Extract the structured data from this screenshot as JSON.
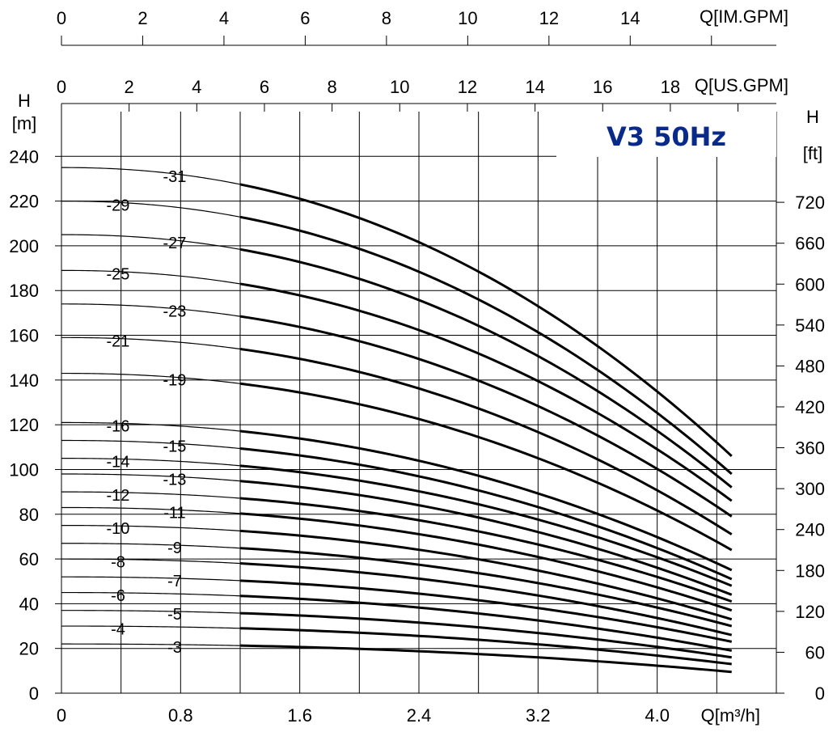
{
  "chart_data": {
    "type": "line",
    "title": "V3 50Hz",
    "colors": {
      "title": "#0a2a8a",
      "curves": "#000000",
      "grid": "#000000"
    },
    "grid": true,
    "legend": "none",
    "xlabel": "Q[m³/h]",
    "ylabel_left": [
      "H",
      "[m]"
    ],
    "ylabel_right": [
      "H",
      "[ft]"
    ],
    "x2label": "Q[US.GPM]",
    "x3label": "Q[IM.GPM]",
    "xlim": [
      0,
      4.8
    ],
    "ylim": [
      0,
      260
    ],
    "x_ticks": [
      "0",
      "0.8",
      "1.6",
      "2.4",
      "3.2",
      "4.0"
    ],
    "y_ticks_left": [
      "0",
      "20",
      "40",
      "60",
      "80",
      "100",
      "120",
      "140",
      "160",
      "180",
      "200",
      "220",
      "240"
    ],
    "y_ticks_right": [
      "0",
      "60",
      "120",
      "180",
      "240",
      "300",
      "360",
      "420",
      "480",
      "540",
      "600",
      "660",
      "720"
    ],
    "x2_ticks": [
      "0",
      "2",
      "4",
      "6",
      "8",
      "10",
      "12",
      "14",
      "16",
      "18"
    ],
    "x3_ticks": [
      "0",
      "2",
      "4",
      "6",
      "8",
      "10",
      "12",
      "14"
    ],
    "operating_range_m3h": [
      1.2,
      4.5
    ],
    "series": [
      {
        "name": "-3",
        "h0": 22,
        "h_end": 9.5
      },
      {
        "name": "-4",
        "h0": 30,
        "h_end": 13
      },
      {
        "name": "-5",
        "h0": 37,
        "h_end": 16
      },
      {
        "name": "-6",
        "h0": 45,
        "h_end": 19
      },
      {
        "name": "-7",
        "h0": 52,
        "h_end": 23
      },
      {
        "name": "-8",
        "h0": 60,
        "h_end": 26
      },
      {
        "name": "-9",
        "h0": 67,
        "h_end": 30
      },
      {
        "name": "-10",
        "h0": 75,
        "h_end": 33
      },
      {
        "name": "-11",
        "h0": 83,
        "h_end": 37
      },
      {
        "name": "-12",
        "h0": 90,
        "h_end": 41
      },
      {
        "name": "-13",
        "h0": 98,
        "h_end": 44
      },
      {
        "name": "-14",
        "h0": 105,
        "h_end": 48
      },
      {
        "name": "-15",
        "h0": 113,
        "h_end": 51
      },
      {
        "name": "-16",
        "h0": 121,
        "h_end": 55
      },
      {
        "name": "-19",
        "h0": 143,
        "h_end": 64
      },
      {
        "name": "-21",
        "h0": 159,
        "h_end": 71
      },
      {
        "name": "-23",
        "h0": 174,
        "h_end": 79
      },
      {
        "name": "-25",
        "h0": 189,
        "h_end": 86
      },
      {
        "name": "-27",
        "h0": 205,
        "h_end": 92
      },
      {
        "name": "-29",
        "h0": 220,
        "h_end": 98
      },
      {
        "name": "-31",
        "h0": 235,
        "h_end": 106
      }
    ]
  }
}
